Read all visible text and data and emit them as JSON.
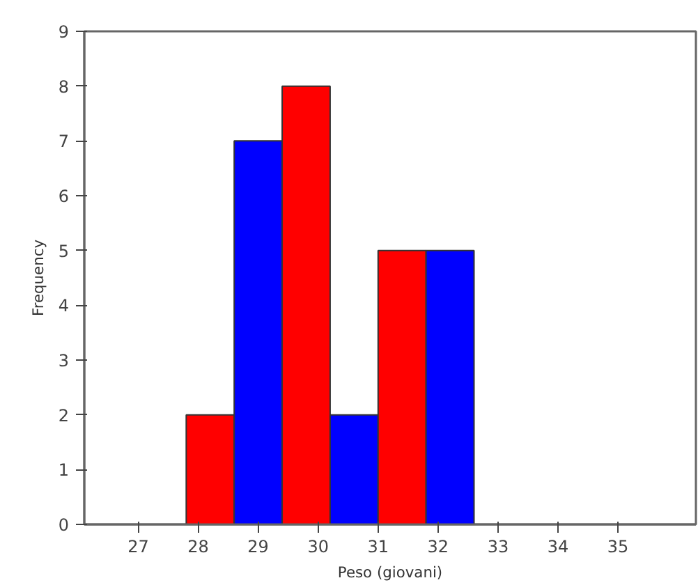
{
  "chart_data": {
    "type": "histogram",
    "xlabel": "Peso (giovani)",
    "ylabel": "Frequency",
    "bins": [
      27.8,
      28.6,
      29.4,
      30.2,
      31.0,
      31.8,
      32.6
    ],
    "values": [
      2,
      7,
      8,
      2,
      5,
      5
    ],
    "colors": [
      "#ff0000",
      "#0000ff",
      "#ff0000",
      "#0000ff",
      "#ff0000",
      "#0000ff"
    ],
    "xlim": [
      26.1,
      36.3
    ],
    "ylim": [
      0,
      9
    ],
    "xticks": [
      27,
      28,
      29,
      30,
      31,
      32,
      33,
      34,
      35
    ],
    "yticks": [
      0,
      1,
      2,
      3,
      4,
      5,
      6,
      7,
      8,
      9
    ],
    "grid": false
  }
}
